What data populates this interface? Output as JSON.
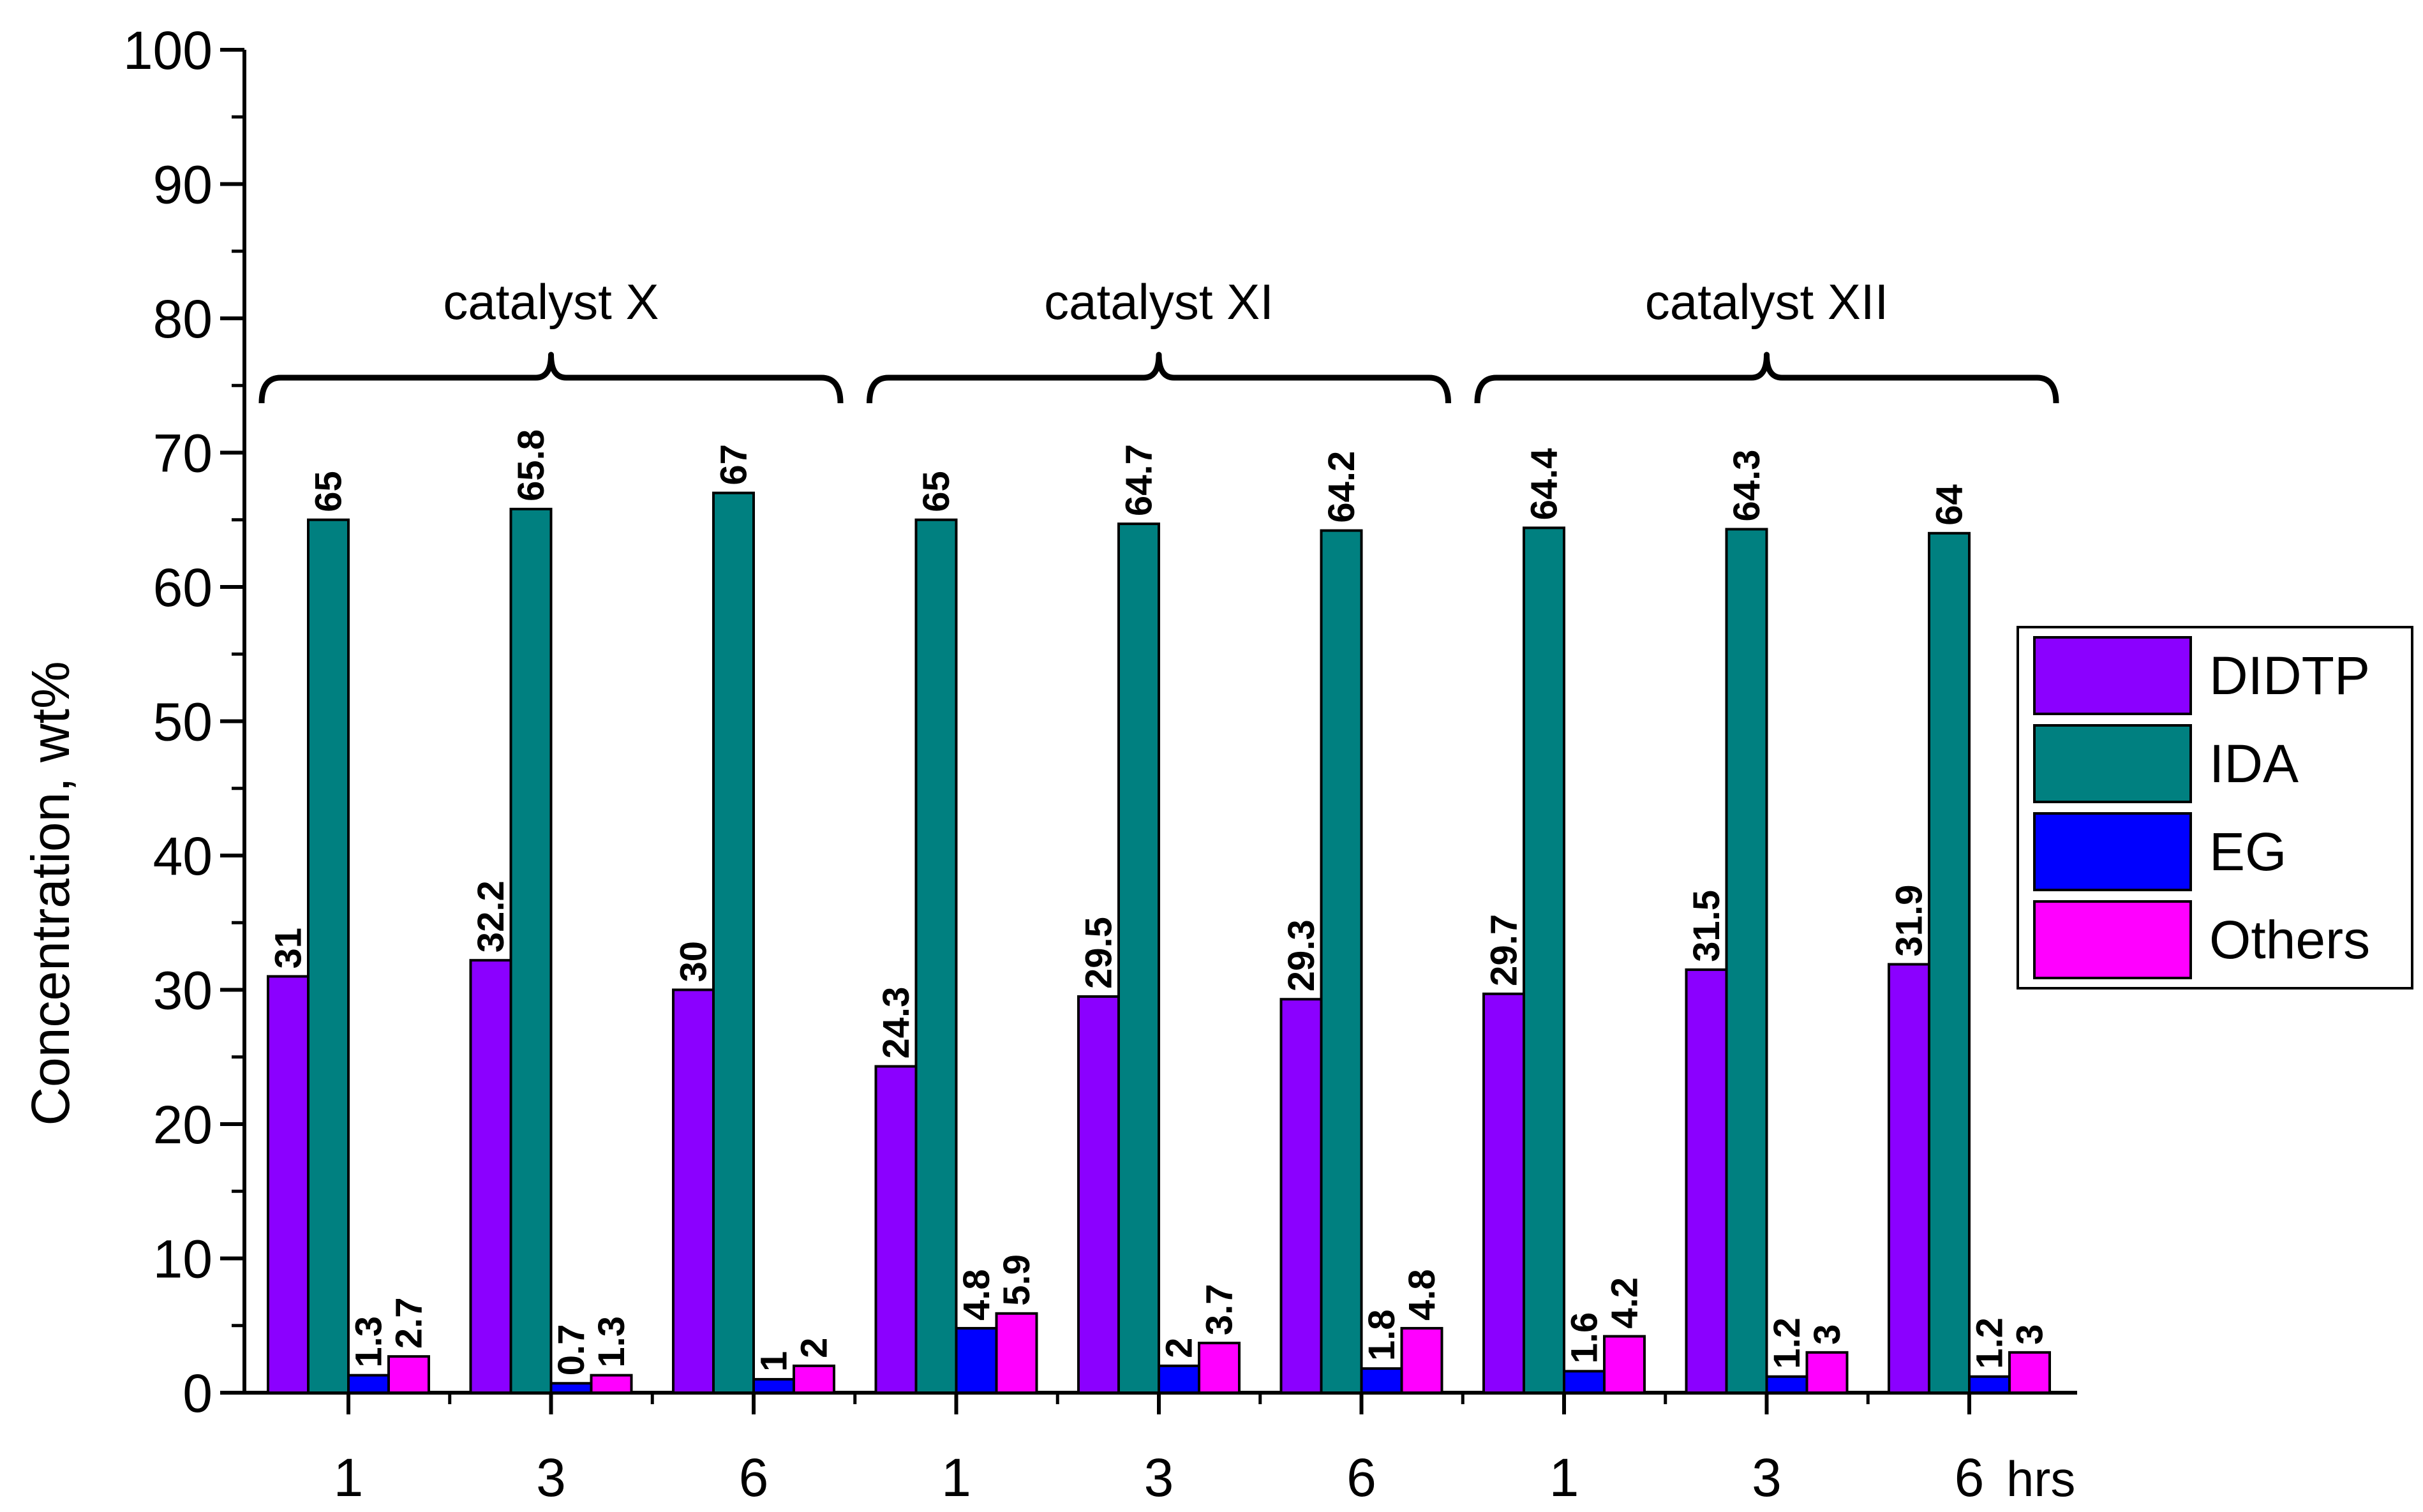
{
  "chart_data": {
    "type": "bar",
    "ylabel": "Concentration, wt%",
    "xlabel": "",
    "ylim": [
      0,
      100
    ],
    "yticks": [
      0,
      10,
      20,
      30,
      40,
      50,
      60,
      70,
      80,
      90,
      100
    ],
    "categories": [
      "1",
      "3",
      "6",
      "1",
      "3",
      "6",
      "1",
      "3",
      "6"
    ],
    "x_unit": "hrs",
    "groups": [
      {
        "label": "catalyst X",
        "categories": [
          0,
          1,
          2
        ]
      },
      {
        "label": "catalyst XI",
        "categories": [
          3,
          4,
          5
        ]
      },
      {
        "label": "catalyst XII",
        "categories": [
          6,
          7,
          8
        ]
      }
    ],
    "series": [
      {
        "name": "DIDTP",
        "color": "#8b00ff",
        "values": [
          31,
          32.2,
          30,
          24.3,
          29.5,
          29.3,
          29.7,
          31.5,
          31.9
        ],
        "labels": [
          "31",
          "32.2",
          "30",
          "24.3",
          "29.5",
          "29.3",
          "29.7",
          "31.5",
          "31.9"
        ]
      },
      {
        "name": "IDA",
        "color": "#008080",
        "values": [
          65,
          65.8,
          67,
          65,
          64.7,
          64.2,
          64.4,
          64.3,
          64
        ],
        "labels": [
          "65",
          "65.8",
          "67",
          "65",
          "64.7",
          "64.2",
          "64.4",
          "64.3",
          "64"
        ]
      },
      {
        "name": "EG",
        "color": "#0000ff",
        "values": [
          1.3,
          0.7,
          1,
          4.8,
          2,
          1.8,
          1.6,
          1.2,
          1.2
        ],
        "labels": [
          "1.3",
          "0.7",
          "1",
          "4.8",
          "2",
          "1.8",
          "1.6",
          "1.2",
          "1.2"
        ]
      },
      {
        "name": "Others",
        "color": "#ff00ff",
        "values": [
          2.7,
          1.3,
          2,
          5.9,
          3.7,
          4.8,
          4.2,
          3,
          3
        ],
        "labels": [
          "2.7",
          "1.3",
          "2",
          "5.9",
          "3.7",
          "4.8",
          "4.2",
          "3",
          "3"
        ]
      }
    ],
    "legend": {
      "position": "right",
      "entries": [
        "DIDTP",
        "IDA",
        "EG",
        "Others"
      ]
    },
    "grid": false
  }
}
